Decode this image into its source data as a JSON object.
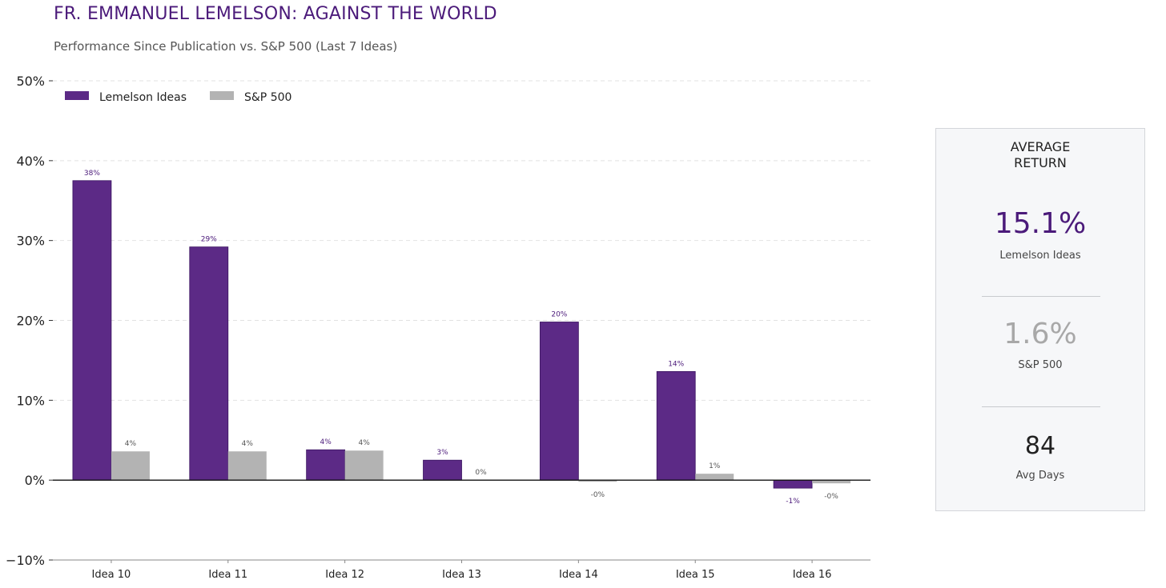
{
  "title": "FR. EMMANUEL LEMELSON: AGAINST THE WORLD",
  "subtitle": "Performance Since Publication vs. S&P 500 (Last 7 Ideas)",
  "colors": {
    "lemelson": "#5c2a86",
    "sp500": "#b3b3b3",
    "title": "#4b1a7a"
  },
  "chart_data": {
    "type": "bar",
    "title": "FR. EMMANUEL LEMELSON: AGAINST THE WORLD",
    "subtitle": "Performance Since Publication vs. S&P 500 (Last 7 Ideas)",
    "categories": [
      "Idea 10",
      "Idea 11",
      "Idea 12",
      "Idea 13",
      "Idea 14",
      "Idea 15",
      "Idea 16"
    ],
    "series": [
      {
        "name": "Lemelson Ideas",
        "values": [
          37.5,
          29.2,
          3.8,
          2.5,
          19.8,
          13.6,
          -1.0
        ],
        "labels": [
          "38%",
          "29%",
          "4%",
          "3%",
          "20%",
          "14%",
          "-1%"
        ]
      },
      {
        "name": "S&P 500",
        "values": [
          3.6,
          3.6,
          3.7,
          0.0,
          -0.2,
          0.8,
          -0.4
        ],
        "labels": [
          "4%",
          "4%",
          "4%",
          "0%",
          "-0%",
          "1%",
          "-0%"
        ]
      }
    ],
    "ylim": [
      -10,
      50
    ],
    "yticks": [
      -10,
      0,
      10,
      20,
      30,
      40,
      50
    ],
    "ytick_labels": [
      "−10%",
      "0%",
      "10%",
      "20%",
      "30%",
      "40%",
      "50%"
    ],
    "xlabel": "",
    "ylabel": "",
    "grid": true,
    "legend": "top-left"
  },
  "summary": {
    "heading": "AVERAGE\nRETURN",
    "lemelson_value": "15.1%",
    "lemelson_caption": "Lemelson Ideas",
    "sp_value": "1.6%",
    "sp_caption": "S&P 500",
    "days_value": "84",
    "days_caption": "Avg Days"
  }
}
